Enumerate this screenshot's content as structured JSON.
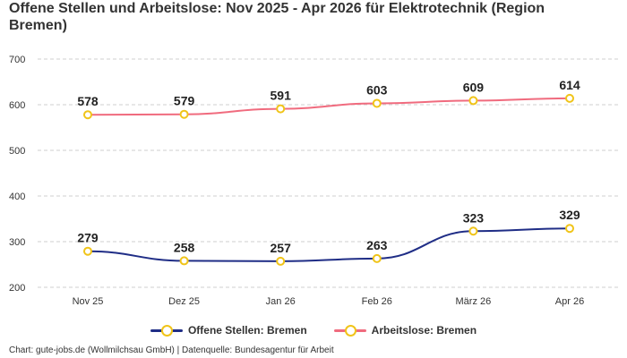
{
  "chart_data": {
    "type": "line",
    "title": "Offene Stellen und Arbeitslose: Nov 2025 - Apr 2026 für Elektrotechnik (Region Bremen)",
    "categories": [
      "Nov 25",
      "Dez 25",
      "Jan 26",
      "Feb 26",
      "März 26",
      "Apr 26"
    ],
    "series": [
      {
        "name": "Offene Stellen: Bremen",
        "values": [
          279,
          258,
          257,
          263,
          323,
          329
        ],
        "color": "#1f2d86"
      },
      {
        "name": "Arbeitslose: Bremen",
        "values": [
          578,
          579,
          591,
          603,
          609,
          614
        ],
        "color": "#f06b7e"
      }
    ],
    "y_ticks": [
      200,
      300,
      400,
      500,
      600,
      700
    ],
    "ylim": [
      200,
      700
    ],
    "grid": true,
    "legend_position": "bottom",
    "marker_color": "#f0c419",
    "source": "Chart: gute-jobs.de (Wollmilchsau GmbH) | Datenquelle: Bundesagentur für Arbeit"
  }
}
